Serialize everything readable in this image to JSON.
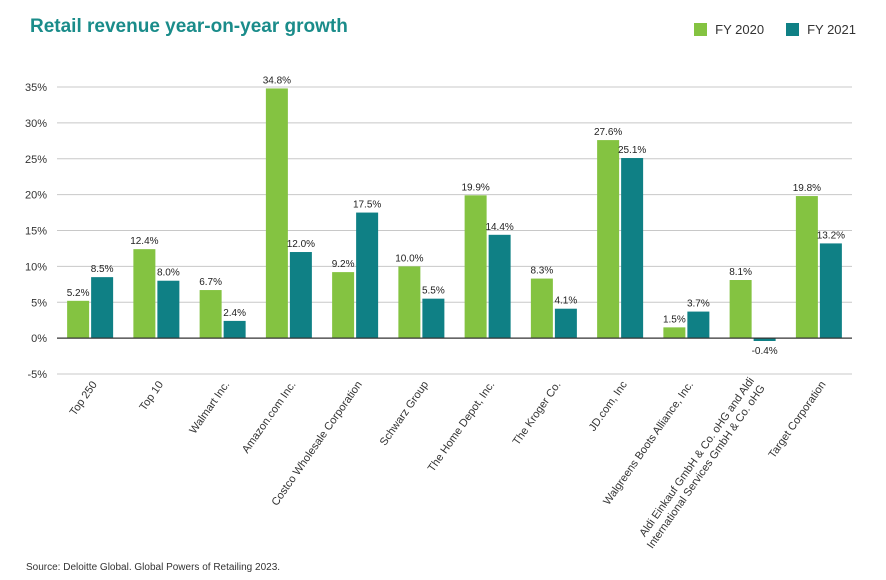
{
  "chart_data": {
    "type": "bar",
    "title": "Retail revenue year-on-year growth",
    "categories": [
      "Top 250",
      "Top 10",
      "Walmart Inc.",
      "Amazon.com Inc.",
      "Costco Wholesale Corporation",
      "Schwarz Group",
      "The Home Depot, Inc.",
      "The Kroger Co.",
      "JD.com, Inc",
      "Walgreens Boots Alliance, Inc.",
      "Aldi Einkauf GmbH & Co. oHG and Aldi International Services GmbH & Co. oHG",
      "Target Corporation"
    ],
    "category_lines": [
      [
        "Top 250"
      ],
      [
        "Top 10"
      ],
      [
        "Walmart Inc."
      ],
      [
        "Amazon.com Inc."
      ],
      [
        "Costco Wholesale Corporation"
      ],
      [
        "Schwarz Group"
      ],
      [
        "The Home Depot, Inc."
      ],
      [
        "The Kroger Co."
      ],
      [
        "JD.com, Inc"
      ],
      [
        "Walgreens Boots Alliance, Inc."
      ],
      [
        "Aldi Einkauf GmbH & Co. oHG and Aldi",
        "International Services GmbH & Co. oHG"
      ],
      [
        "Target Corporation"
      ]
    ],
    "series": [
      {
        "name": "FY 2020",
        "color": "#84c341",
        "values": [
          5.2,
          12.4,
          6.7,
          34.8,
          9.2,
          10.0,
          19.9,
          8.3,
          27.6,
          1.5,
          8.1,
          19.8
        ],
        "labels": [
          "5.2%",
          "12.4%",
          "6.7%",
          "34.8%",
          "9.2%",
          "10.0%",
          "19.9%",
          "8.3%",
          "27.6%",
          "1.5%",
          "8.1%",
          "19.8%"
        ]
      },
      {
        "name": "FY 2021",
        "color": "#0f8085",
        "values": [
          8.5,
          8.0,
          2.4,
          12.0,
          17.5,
          5.5,
          14.4,
          4.1,
          25.1,
          3.7,
          -0.4,
          13.2
        ],
        "labels": [
          "8.5%",
          "8.0%",
          "2.4%",
          "12.0%",
          "17.5%",
          "5.5%",
          "14.4%",
          "4.1%",
          "25.1%",
          "3.7%",
          "-0.4%",
          "13.2%"
        ]
      }
    ],
    "yticks": [
      -5,
      0,
      5,
      10,
      15,
      20,
      25,
      30,
      35
    ],
    "ytick_labels": [
      "-5%",
      "0%",
      "5%",
      "10%",
      "15%",
      "20%",
      "25%",
      "30%",
      "35%"
    ],
    "ylim": [
      -5,
      35
    ],
    "grid": true,
    "legend_position": "top-right"
  },
  "legend": {
    "fy2020": "FY 2020",
    "fy2021": "FY 2021"
  },
  "source": "Source: Deloitte Global. Global Powers of Retailing 2023."
}
